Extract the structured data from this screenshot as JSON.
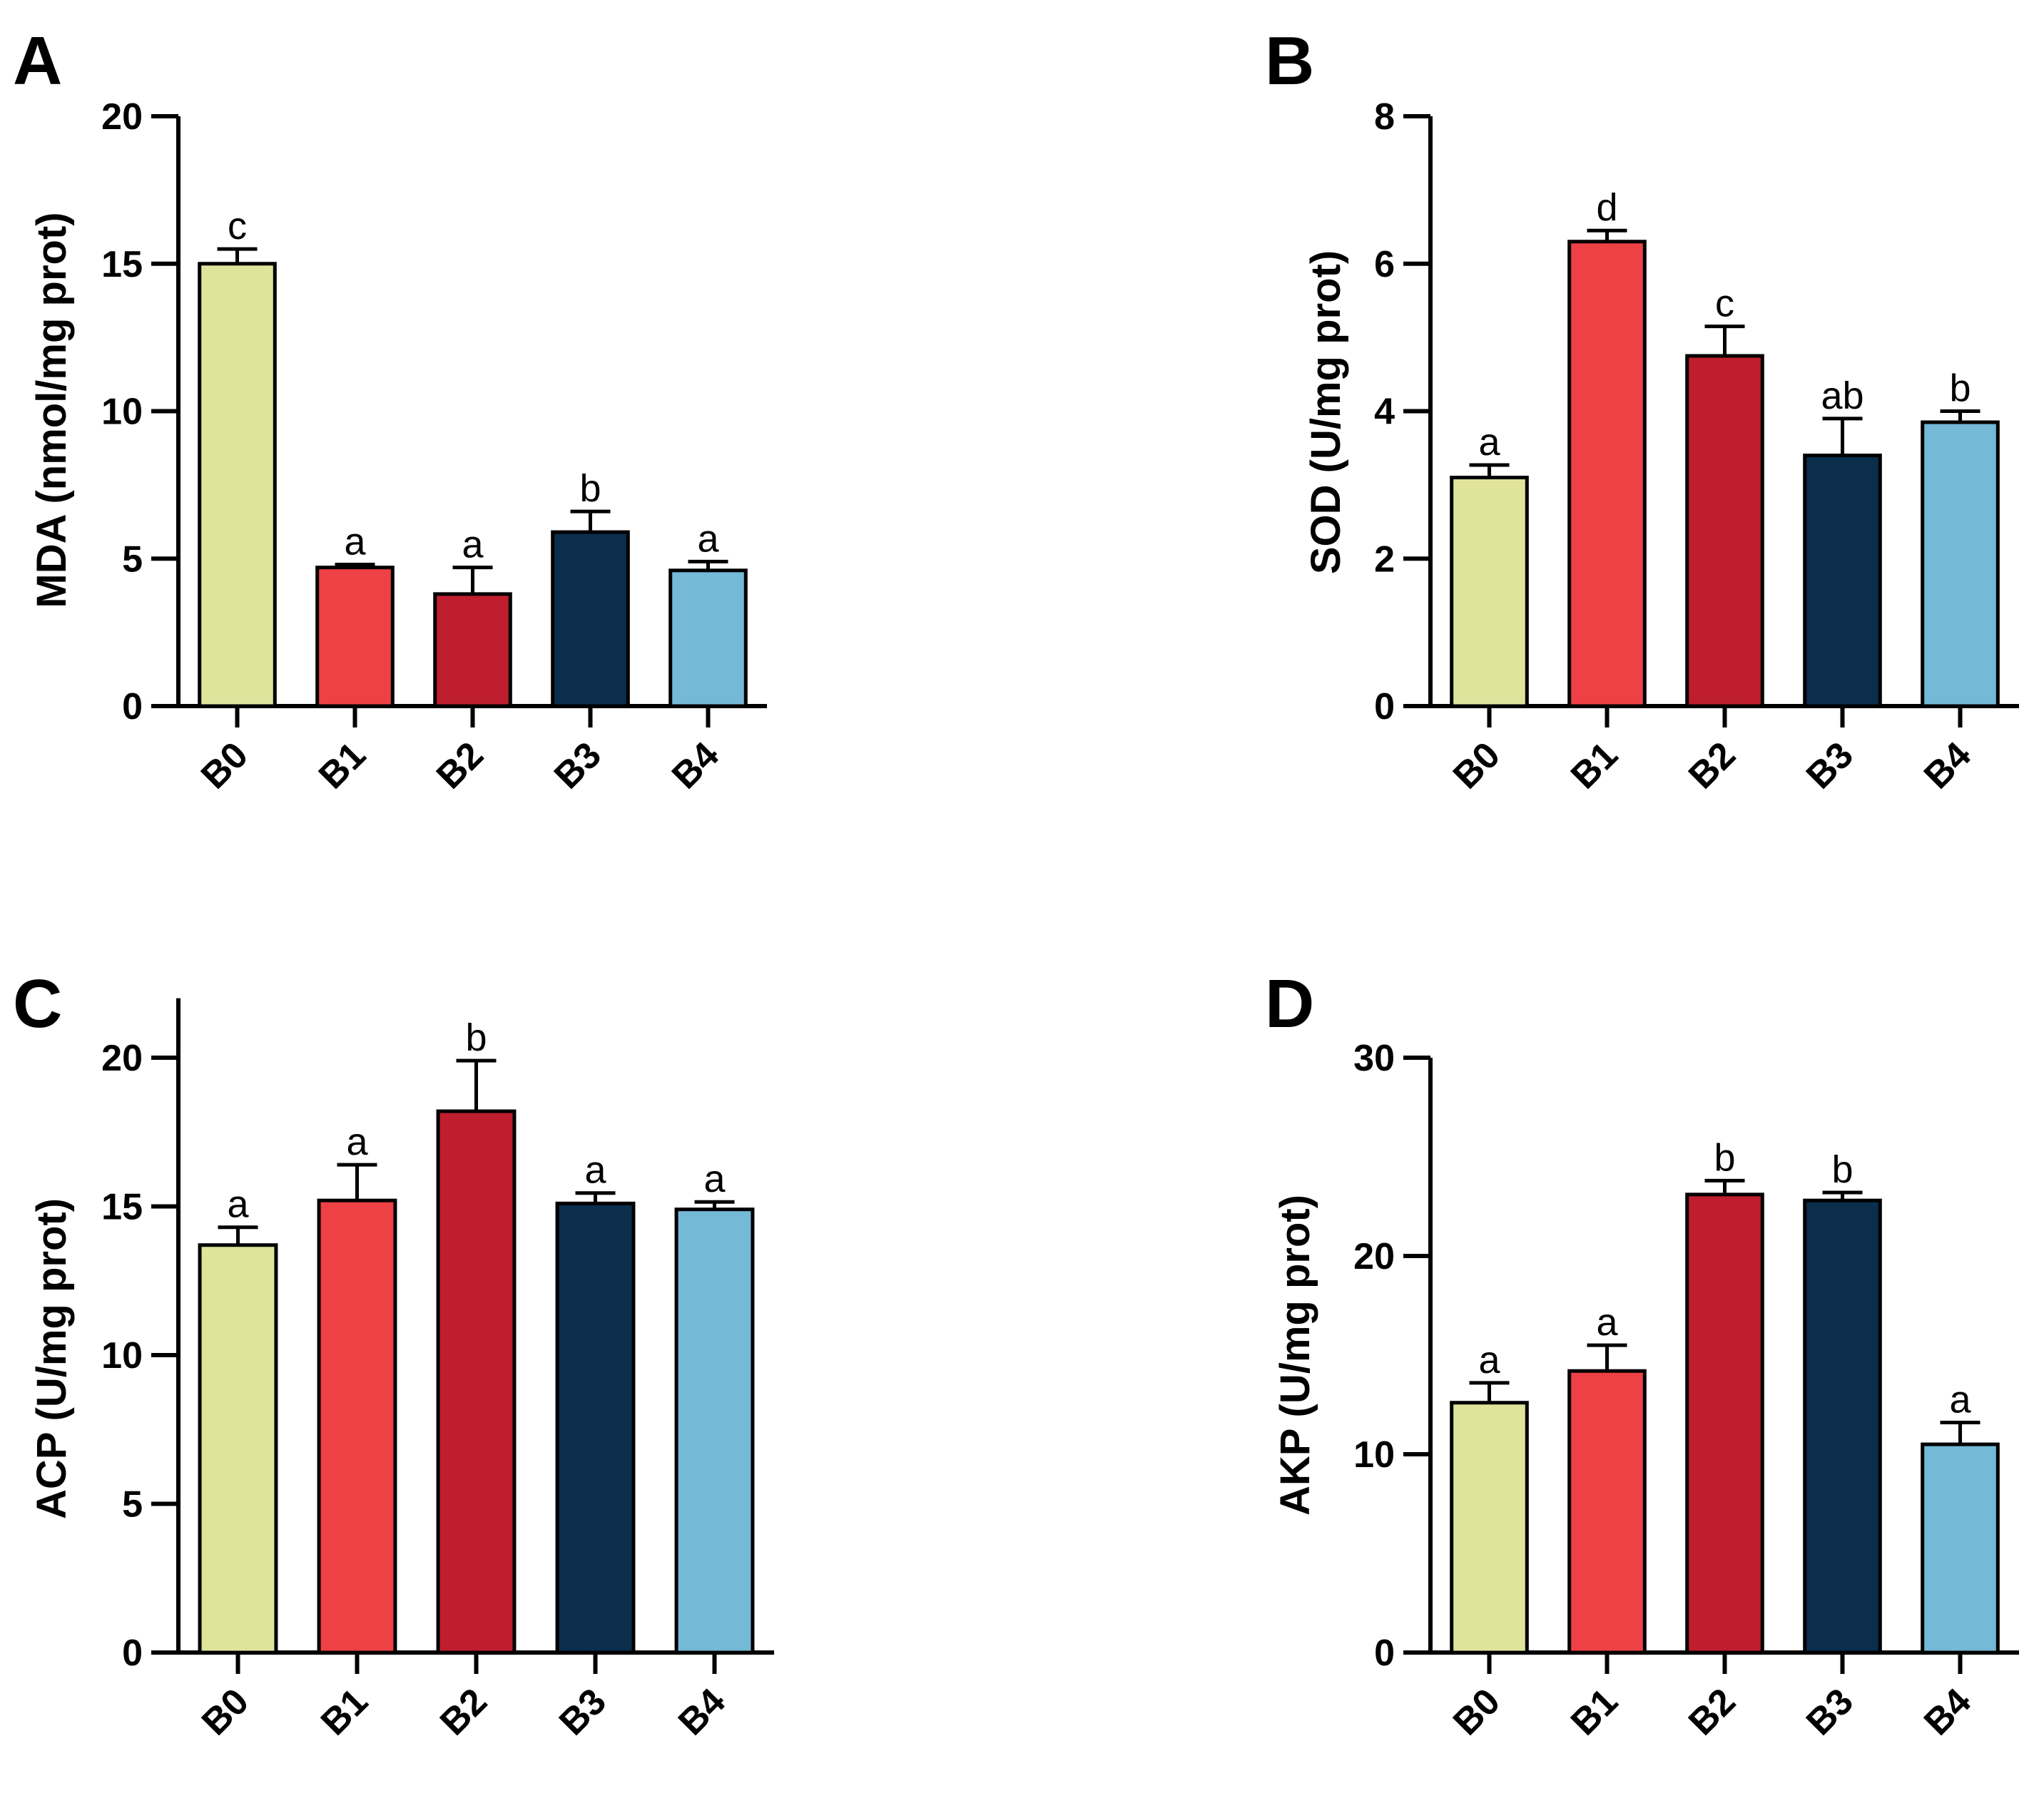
{
  "colors": {
    "B0": "#e0e39c",
    "B1": "#ee4145",
    "B2": "#be1e2d",
    "B3": "#0a2e4c",
    "B4": "#74b9d6",
    "axis": "#000000",
    "background": "#ffffff"
  },
  "chart_data": [
    {
      "panel": "A",
      "type": "bar",
      "ylabel": "MDA (nmol/mg prot)",
      "xlabel": "",
      "ylim": [
        0,
        20
      ],
      "yticks": [
        0,
        5,
        10,
        15,
        20
      ],
      "categories": [
        "B0",
        "B1",
        "B2",
        "B3",
        "B4"
      ],
      "values": [
        15.0,
        4.7,
        3.8,
        5.9,
        4.6
      ],
      "errors": [
        0.5,
        0.1,
        0.9,
        0.7,
        0.3
      ],
      "significance": [
        "c",
        "a",
        "a",
        "b",
        "a"
      ]
    },
    {
      "panel": "B",
      "type": "bar",
      "ylabel": "SOD (U/mg prot)",
      "xlabel": "",
      "ylim": [
        0,
        8
      ],
      "yticks": [
        0,
        2,
        4,
        6,
        8
      ],
      "categories": [
        "B0",
        "B1",
        "B2",
        "B3",
        "B4"
      ],
      "values": [
        3.1,
        6.3,
        4.75,
        3.4,
        3.85
      ],
      "errors": [
        0.17,
        0.15,
        0.4,
        0.5,
        0.15
      ],
      "significance": [
        "a",
        "d",
        "c",
        "ab",
        "b"
      ]
    },
    {
      "panel": "C",
      "type": "bar",
      "ylabel": "ACP (U/mg prot)",
      "xlabel": "",
      "ylim": [
        0,
        22
      ],
      "yticks": [
        0,
        5,
        10,
        15,
        20
      ],
      "categories": [
        "B0",
        "B1",
        "B2",
        "B3",
        "B4"
      ],
      "values": [
        13.7,
        15.2,
        18.2,
        15.1,
        14.9
      ],
      "errors": [
        0.6,
        1.2,
        1.7,
        0.35,
        0.25
      ],
      "significance": [
        "a",
        "a",
        "b",
        "a",
        "a"
      ]
    },
    {
      "panel": "D",
      "type": "bar",
      "ylabel": "AKP (U/mg prot)",
      "xlabel": "",
      "ylim": [
        0,
        30
      ],
      "yticks": [
        0,
        10,
        20,
        30
      ],
      "categories": [
        "B0",
        "B1",
        "B2",
        "B3",
        "B4"
      ],
      "values": [
        12.6,
        14.2,
        23.1,
        22.8,
        10.5
      ],
      "errors": [
        1.0,
        1.3,
        0.7,
        0.4,
        1.1
      ],
      "significance": [
        "a",
        "a",
        "b",
        "b",
        "a"
      ]
    }
  ]
}
